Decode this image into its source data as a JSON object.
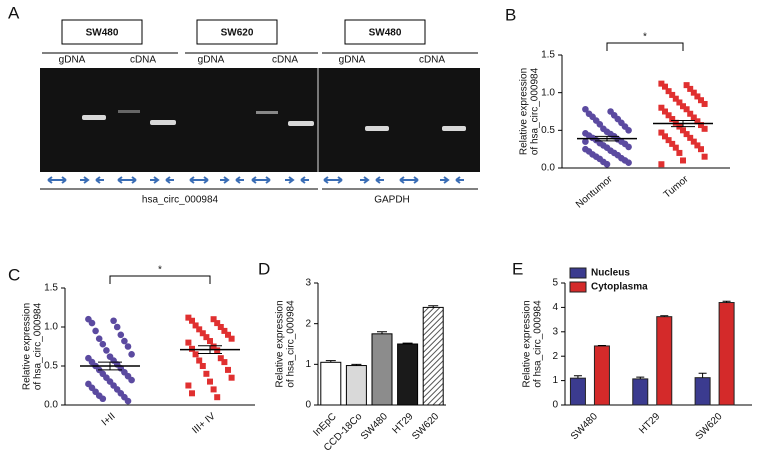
{
  "gel": {
    "label": "A",
    "cell_lines": [
      "SW480",
      "SW620",
      "SW480"
    ],
    "lanes": [
      "gDNA",
      "cDNA",
      "gDNA",
      "cDNA",
      "gDNA",
      "cDNA"
    ],
    "targets": [
      "hsa_circ_000984",
      "GAPDH"
    ]
  },
  "chart_data": [
    {
      "type": "scatter",
      "label": "B",
      "ylabel": [
        "Relative expression",
        "of hsa_circ_000984"
      ],
      "categories": [
        "Nontumor",
        "Tumor"
      ],
      "annotation": "*",
      "ylim": [
        0,
        1.5
      ],
      "yticks": [
        {
          "value": 0,
          "label": "0.0"
        },
        0.5,
        {
          "value": 1,
          "label": "1.0"
        },
        1.5
      ],
      "series": [
        {
          "name": "Nontumor",
          "color": "#5b4aa0",
          "marker": "circle",
          "mean": 0.39,
          "sem": 0.03,
          "values": [
            0.78,
            0.75,
            0.72,
            0.7,
            0.68,
            0.65,
            0.63,
            0.6,
            0.58,
            0.55,
            0.52,
            0.5,
            0.48,
            0.46,
            0.45,
            0.43,
            0.42,
            0.4,
            0.38,
            0.37,
            0.35,
            0.33,
            0.32,
            0.3,
            0.28,
            0.27,
            0.25,
            0.23,
            0.22,
            0.2,
            0.18,
            0.17,
            0.15,
            0.13,
            0.12,
            0.1,
            0.08,
            0.07,
            0.05,
            0.35
          ]
        },
        {
          "name": "Tumor",
          "color": "#e03030",
          "marker": "square",
          "mean": 0.59,
          "sem": 0.04,
          "values": [
            1.12,
            1.1,
            1.08,
            1.05,
            1.02,
            1.0,
            0.97,
            0.95,
            0.92,
            0.9,
            0.87,
            0.85,
            0.82,
            0.8,
            0.78,
            0.75,
            0.72,
            0.7,
            0.67,
            0.65,
            0.62,
            0.6,
            0.57,
            0.55,
            0.52,
            0.5,
            0.47,
            0.45,
            0.42,
            0.4,
            0.37,
            0.35,
            0.32,
            0.3,
            0.27,
            0.25,
            0.2,
            0.15,
            0.1,
            0.05
          ]
        }
      ]
    },
    {
      "type": "scatter",
      "label": "C",
      "ylabel": [
        "Relative expression",
        "of hsa_circ_000984"
      ],
      "categories": [
        "I+II",
        "III+ IV"
      ],
      "annotation": "*",
      "ylim": [
        0,
        1.5
      ],
      "yticks": [
        {
          "value": 0,
          "label": "0.0"
        },
        0.5,
        {
          "value": 1,
          "label": "1.0"
        },
        1.5
      ],
      "series": [
        {
          "name": "I+II",
          "color": "#5b4aa0",
          "marker": "circle",
          "mean": 0.5,
          "sem": 0.05,
          "values": [
            1.1,
            1.08,
            1.05,
            1.0,
            0.95,
            0.9,
            0.85,
            0.82,
            0.78,
            0.75,
            0.7,
            0.65,
            0.62,
            0.6,
            0.57,
            0.55,
            0.52,
            0.5,
            0.47,
            0.45,
            0.42,
            0.4,
            0.37,
            0.35,
            0.32,
            0.3,
            0.27,
            0.25,
            0.22,
            0.2,
            0.17,
            0.15,
            0.12,
            0.1,
            0.08,
            0.05
          ]
        },
        {
          "name": "III+ IV",
          "color": "#e03030",
          "marker": "square",
          "mean": 0.71,
          "sem": 0.05,
          "values": [
            1.12,
            1.1,
            1.08,
            1.05,
            1.02,
            1.0,
            0.97,
            0.95,
            0.92,
            0.9,
            0.87,
            0.85,
            0.82,
            0.8,
            0.75,
            0.72,
            0.7,
            0.65,
            0.6,
            0.57,
            0.55,
            0.5,
            0.45,
            0.4,
            0.35,
            0.3,
            0.25,
            0.2,
            0.15,
            0.1
          ]
        }
      ]
    },
    {
      "type": "bar",
      "label": "D",
      "ylabel": [
        "Relative expression",
        "of hsa_circ_000984"
      ],
      "categories": [
        "InEpC",
        "CCD-18Co",
        "SW480",
        "HT29",
        "SW620"
      ],
      "values": [
        1.05,
        0.97,
        1.75,
        1.5,
        2.4
      ],
      "errors": [
        0.04,
        0.03,
        0.05,
        0.02,
        0.04
      ],
      "fills": [
        "#ffffff",
        "#d9d9d9",
        "#8c8c8c",
        "#1a1a1a",
        "hatch"
      ],
      "ylim": [
        0,
        3
      ],
      "yticks": [
        0,
        1,
        2,
        3
      ]
    },
    {
      "type": "grouped_bar",
      "label": "E",
      "ylabel": [
        "Relative expression",
        "of hsa_circ_000984"
      ],
      "categories": [
        "SW480",
        "HT29",
        "SW620"
      ],
      "legend": "top-left",
      "ylim": [
        0,
        5
      ],
      "yticks": [
        0,
        1,
        2,
        3,
        4,
        5
      ],
      "series": [
        {
          "name": "Nucleus",
          "color": "#3b3b8f",
          "values": [
            1.1,
            1.07,
            1.12
          ],
          "errors": [
            0.1,
            0.07,
            0.18
          ]
        },
        {
          "name": "Cytoplasma",
          "color": "#d42a2a",
          "values": [
            2.42,
            3.62,
            4.2
          ],
          "errors": [
            0.02,
            0.04,
            0.05
          ]
        }
      ]
    }
  ]
}
